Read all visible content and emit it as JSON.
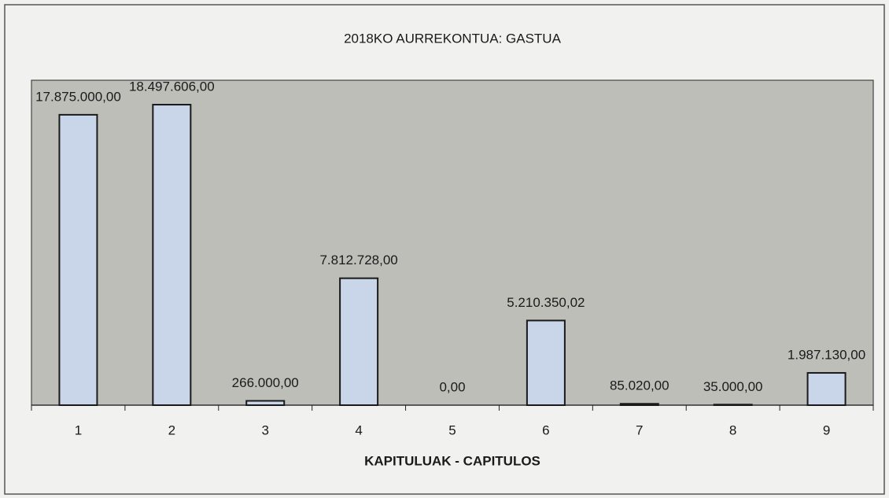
{
  "chart_data": {
    "type": "bar",
    "title": "2018KO AURREKONTUA: GASTUA",
    "x_label": "KAPITULUAK - CAPITULOS",
    "categories": [
      "1",
      "2",
      "3",
      "4",
      "5",
      "6",
      "7",
      "8",
      "9"
    ],
    "values": [
      17875000,
      18497606,
      266000,
      7812728,
      0,
      5210350.02,
      85020,
      35000,
      1987130
    ],
    "value_labels": [
      "17.875.000,00",
      "18.497.606,00",
      "266.000,00",
      "7.812.728,00",
      "0,00",
      "5.210.350,02",
      "85.020,00",
      "35.000,00",
      "1.987.130,00"
    ],
    "color": "#c9d5e8",
    "ylim": [
      0,
      20000000
    ]
  }
}
